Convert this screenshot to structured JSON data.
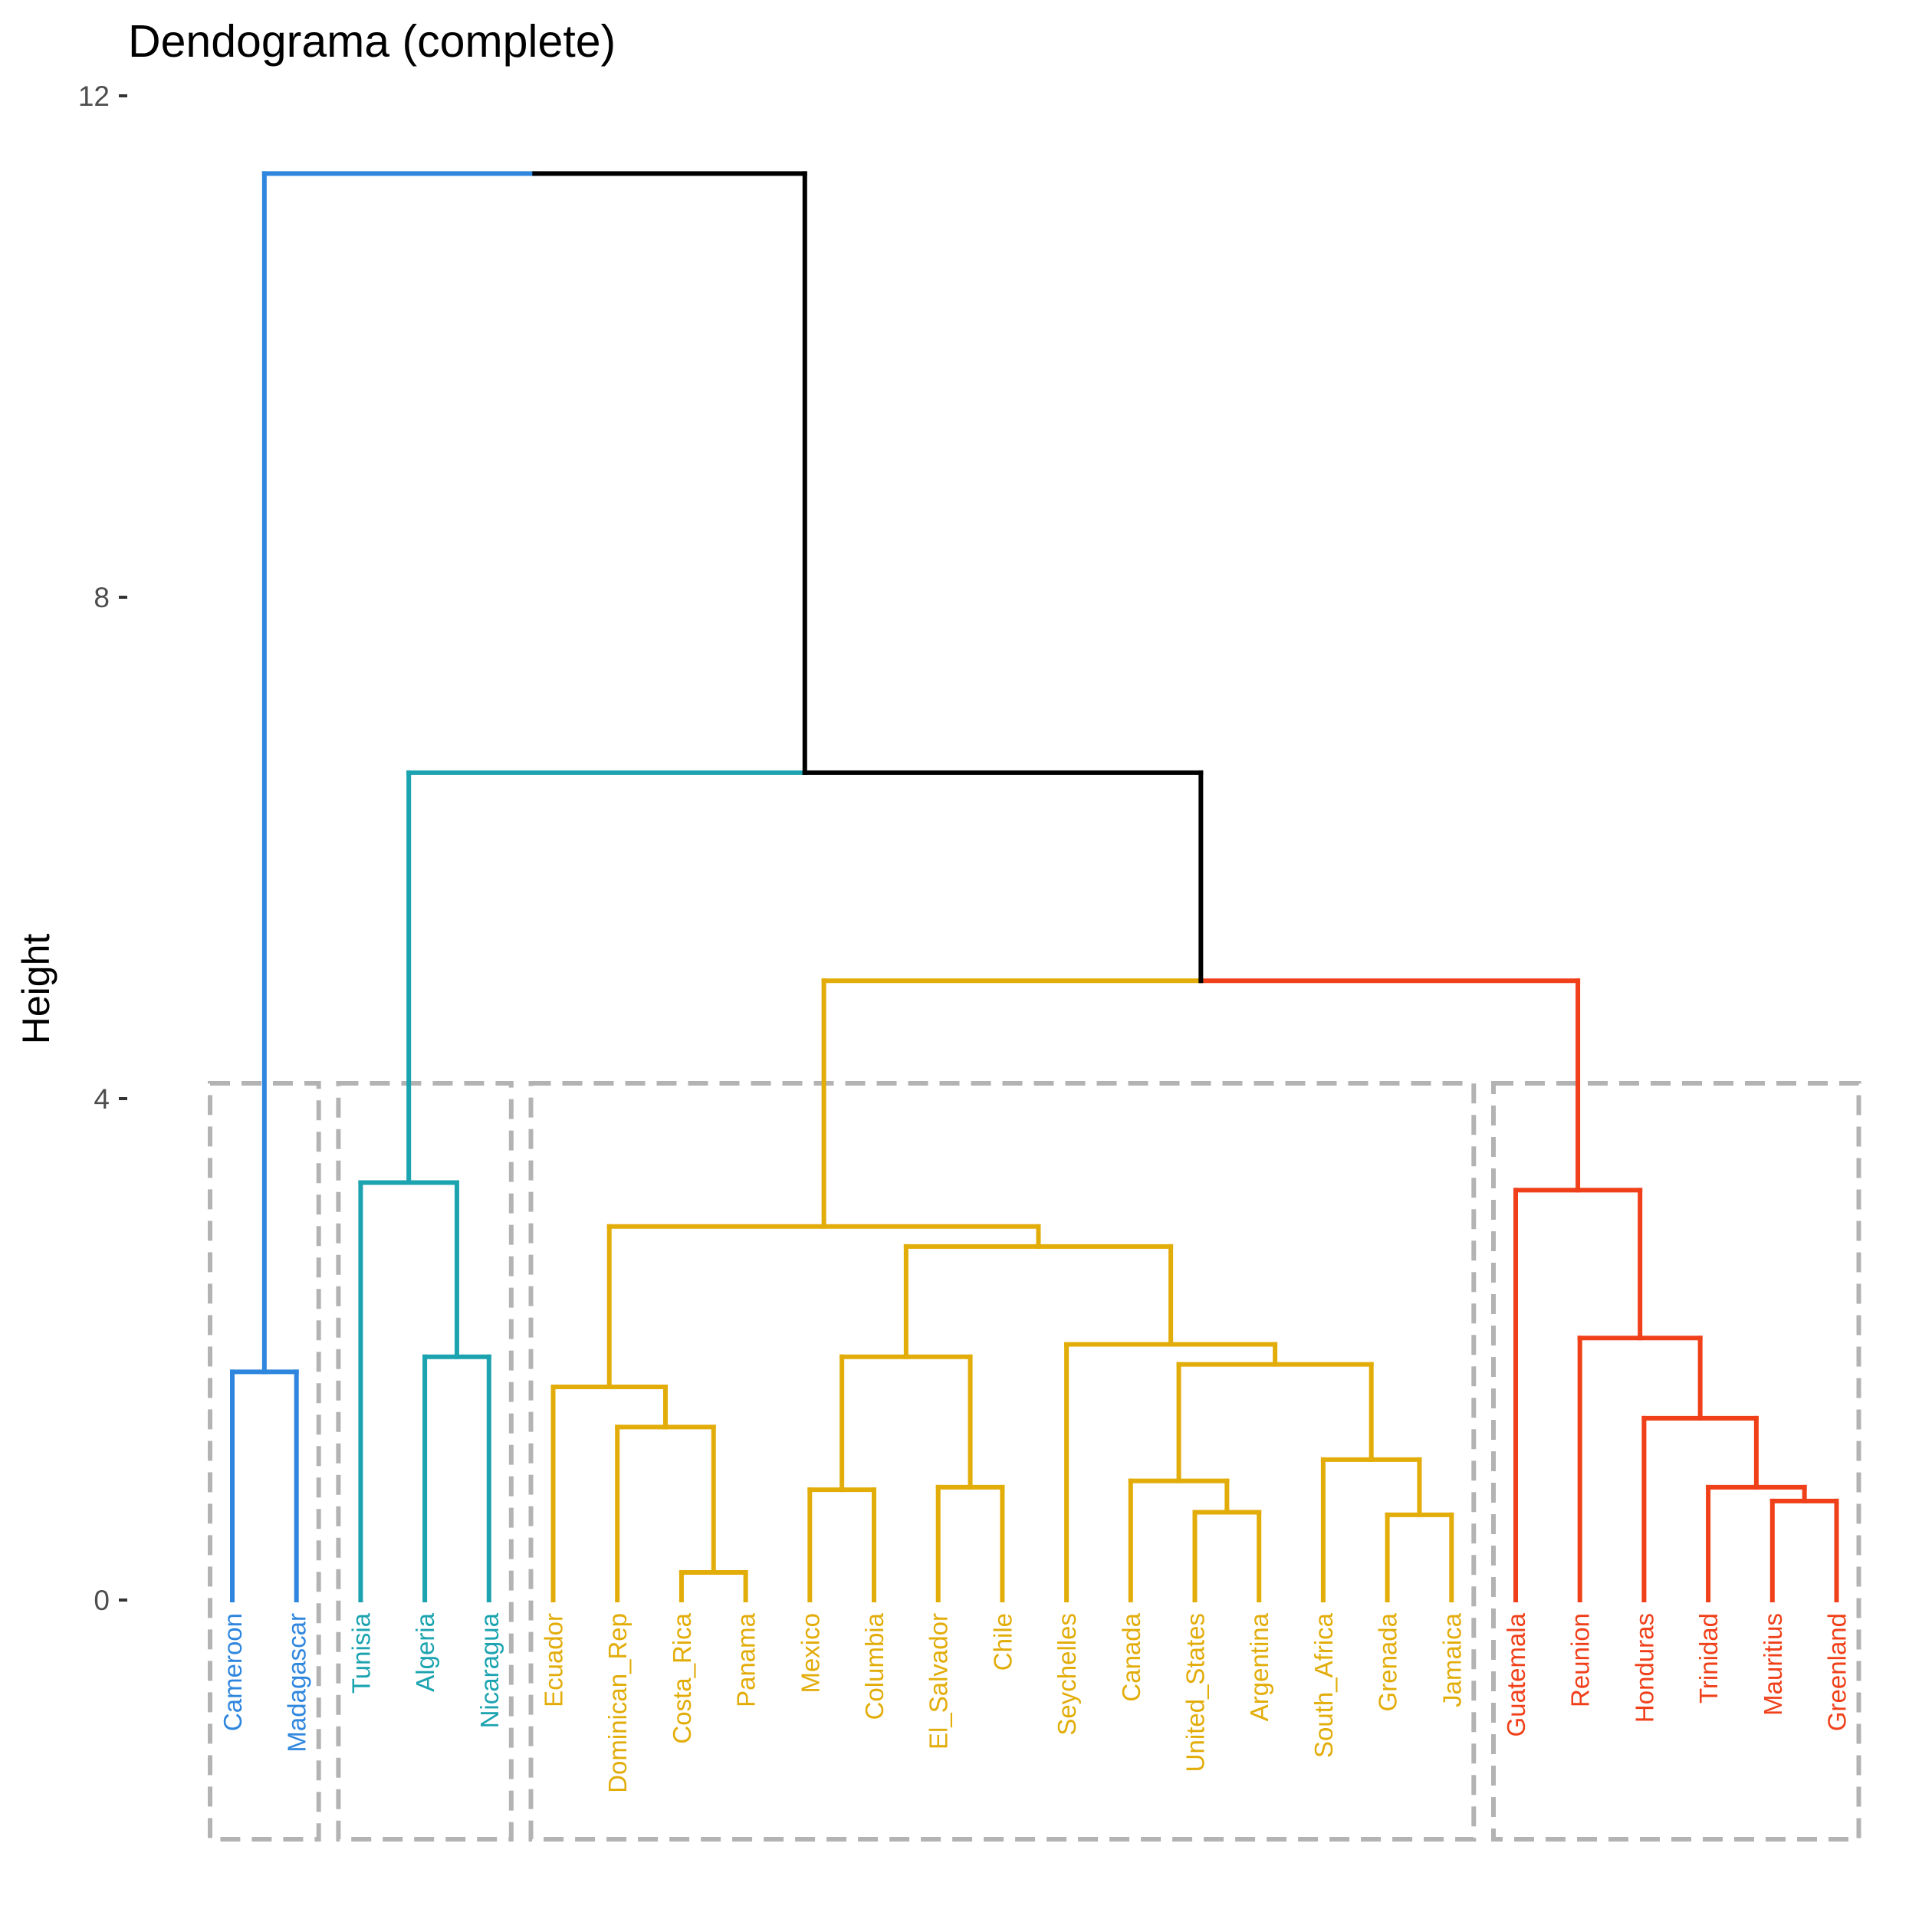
{
  "chart_data": {
    "type": "dendrogram",
    "title": "Dendograma (complete)",
    "ylabel": "Height",
    "xlabel": "",
    "ylim": [
      0,
      12
    ],
    "yticks": [
      0,
      4,
      8,
      12
    ],
    "grid": false,
    "leaves": [
      {
        "name": "Cameroon",
        "cluster": 0
      },
      {
        "name": "Madagascar",
        "cluster": 0
      },
      {
        "name": "Tunisia",
        "cluster": 1
      },
      {
        "name": "Algeria",
        "cluster": 1
      },
      {
        "name": "Nicaragua",
        "cluster": 1
      },
      {
        "name": "Ecuador",
        "cluster": 2
      },
      {
        "name": "Dominican_Rep",
        "cluster": 2
      },
      {
        "name": "Costa_Rica",
        "cluster": 2
      },
      {
        "name": "Panama",
        "cluster": 2
      },
      {
        "name": "Mexico",
        "cluster": 2
      },
      {
        "name": "Columbia",
        "cluster": 2
      },
      {
        "name": "El_Salvador",
        "cluster": 2
      },
      {
        "name": "Chile",
        "cluster": 2
      },
      {
        "name": "Seychelles",
        "cluster": 2
      },
      {
        "name": "Canada",
        "cluster": 2
      },
      {
        "name": "United_States",
        "cluster": 2
      },
      {
        "name": "Argentina",
        "cluster": 2
      },
      {
        "name": "South_Africa",
        "cluster": 2
      },
      {
        "name": "Grenada",
        "cluster": 2
      },
      {
        "name": "Jamaica",
        "cluster": 2
      },
      {
        "name": "Guatemala",
        "cluster": 3
      },
      {
        "name": "Reunion",
        "cluster": 3
      },
      {
        "name": "Honduras",
        "cluster": 3
      },
      {
        "name": "Trinidad",
        "cluster": 3
      },
      {
        "name": "Mauritius",
        "cluster": 3
      },
      {
        "name": "Greenland",
        "cluster": 3
      }
    ],
    "merges": [
      {
        "id": "m1",
        "left": "Costa_Rica",
        "right": "Panama",
        "height": 0.22
      },
      {
        "id": "m2",
        "left": "Grenada",
        "right": "Jamaica",
        "height": 0.68
      },
      {
        "id": "m3",
        "left": "United_States",
        "right": "Argentina",
        "height": 0.7
      },
      {
        "id": "m4",
        "left": "Mauritius",
        "right": "Greenland",
        "height": 0.79
      },
      {
        "id": "m5",
        "left": "El_Salvador",
        "right": "Chile",
        "height": 0.9
      },
      {
        "id": "m6",
        "left": "Trinidad",
        "right": "m4",
        "height": 0.9
      },
      {
        "id": "m7",
        "left": "Mexico",
        "right": "Columbia",
        "height": 0.88
      },
      {
        "id": "m8",
        "left": "Canada",
        "right": "m3",
        "height": 0.95
      },
      {
        "id": "m9",
        "left": "South_Africa",
        "right": "m2",
        "height": 1.12
      },
      {
        "id": "m10",
        "left": "Dominican_Rep",
        "right": "m1",
        "height": 1.38
      },
      {
        "id": "m11",
        "left": "Honduras",
        "right": "m6",
        "height": 1.45
      },
      {
        "id": "m12",
        "left": "Ecuador",
        "right": "m10",
        "height": 1.7
      },
      {
        "id": "m13",
        "left": "Cameroon",
        "right": "Madagascar",
        "height": 1.82
      },
      {
        "id": "m14",
        "left": "m8",
        "right": "m9",
        "height": 1.88
      },
      {
        "id": "m15",
        "left": "m7",
        "right": "m5",
        "height": 1.94
      },
      {
        "id": "m16",
        "left": "Algeria",
        "right": "Nicaragua",
        "height": 1.94
      },
      {
        "id": "m17",
        "left": "Seychelles",
        "right": "m14",
        "height": 2.04
      },
      {
        "id": "m18",
        "left": "Reunion",
        "right": "m11",
        "height": 2.09
      },
      {
        "id": "m19",
        "left": "m15",
        "right": "m17",
        "height": 2.82
      },
      {
        "id": "m20",
        "left": "m12",
        "right": "m19",
        "height": 2.98
      },
      {
        "id": "m21",
        "left": "Guatemala",
        "right": "m18",
        "height": 3.27
      },
      {
        "id": "m22",
        "left": "Tunisia",
        "right": "m16",
        "height": 3.33
      },
      {
        "id": "m23",
        "left": "m20",
        "right": "m21",
        "height": 4.94
      },
      {
        "id": "m24",
        "left": "m22",
        "right": "m23",
        "height": 6.6
      },
      {
        "id": "m25",
        "left": "m13",
        "right": "m24",
        "height": 11.38
      }
    ],
    "cluster_colors": [
      "#2E86DE",
      "#1BA3B0",
      "#E2AC09",
      "#F0401A"
    ],
    "upper_branch_color": "#000000",
    "box_color": "#B3B3B3"
  }
}
